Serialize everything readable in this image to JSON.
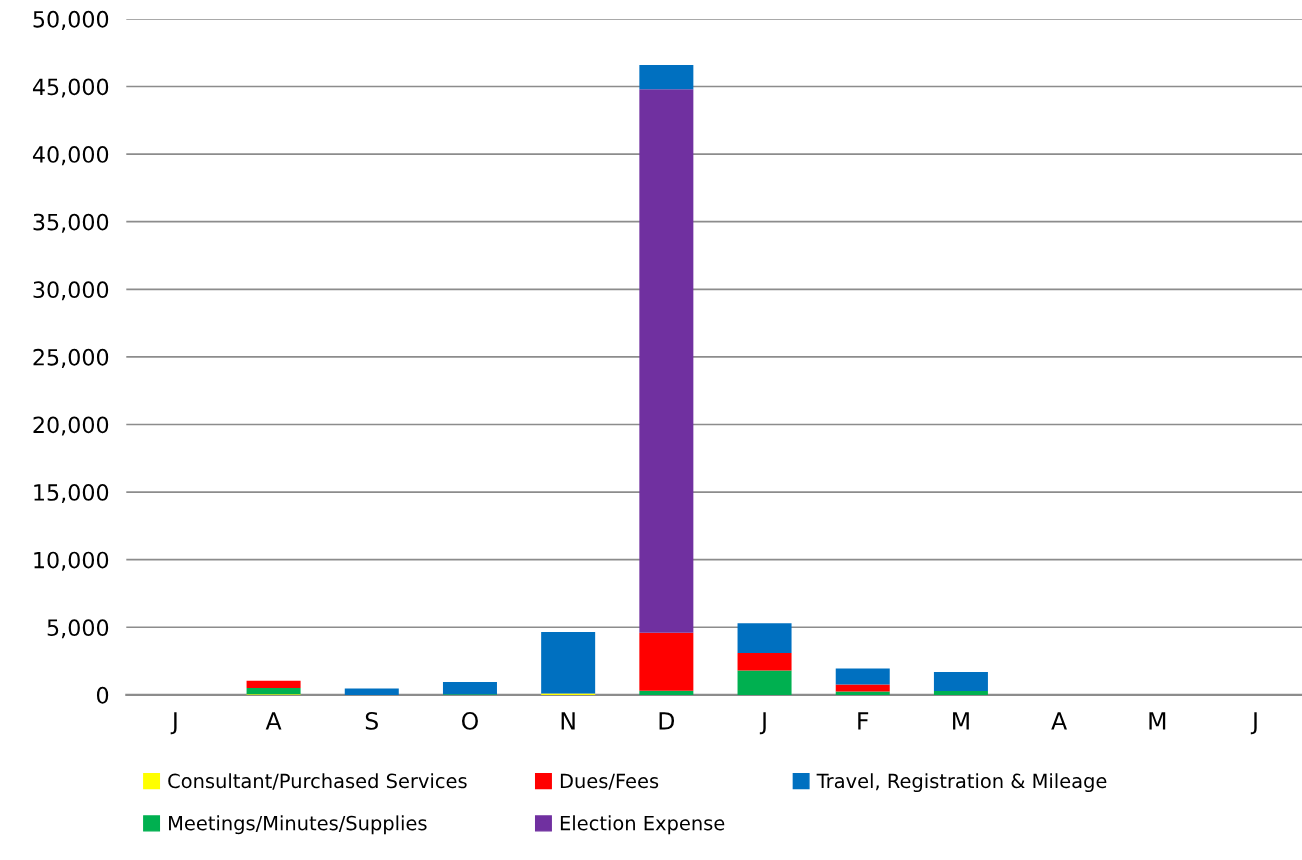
{
  "chart_data": {
    "type": "bar",
    "stacked": true,
    "categories": [
      "J",
      "A",
      "S",
      "O",
      "N",
      "D",
      "J",
      "F",
      "M",
      "A",
      "M",
      "J"
    ],
    "series": [
      {
        "name": "Consultant/Purchased Services",
        "color": "#ffff00",
        "values": [
          0,
          50,
          0,
          0,
          100,
          0,
          0,
          0,
          0,
          0,
          0,
          0
        ]
      },
      {
        "name": "Meetings/Minutes/Supplies",
        "color": "#00b050",
        "values": [
          0,
          450,
          0,
          50,
          0,
          300,
          1800,
          250,
          280,
          0,
          0,
          0
        ]
      },
      {
        "name": "Dues/Fees",
        "color": "#ff0000",
        "values": [
          0,
          550,
          0,
          0,
          0,
          4300,
          1300,
          510,
          0,
          0,
          0,
          0
        ]
      },
      {
        "name": "Election Expense",
        "color": "#7030a0",
        "values": [
          0,
          0,
          0,
          0,
          0,
          40200,
          0,
          0,
          0,
          0,
          0,
          0
        ]
      },
      {
        "name": "Travel, Registration & Mileage",
        "color": "#0070c0",
        "values": [
          0,
          0,
          480,
          910,
          4560,
          1800,
          2200,
          1190,
          1420,
          0,
          0,
          0
        ]
      }
    ],
    "ylim": [
      0,
      50000
    ],
    "yticks": [
      {
        "value": 0,
        "label": "0"
      },
      {
        "value": 5000,
        "label": "5,000"
      },
      {
        "value": 10000,
        "label": "10,000"
      },
      {
        "value": 15000,
        "label": "15,000"
      },
      {
        "value": 20000,
        "label": "20,000"
      },
      {
        "value": 25000,
        "label": "25,000"
      },
      {
        "value": 30000,
        "label": "30,000"
      },
      {
        "value": 35000,
        "label": "35,000"
      },
      {
        "value": 40000,
        "label": "40,000"
      },
      {
        "value": 45000,
        "label": "45,000"
      },
      {
        "value": 50000,
        "label": "50,000"
      }
    ],
    "grid": "y",
    "legend": "bottom"
  }
}
